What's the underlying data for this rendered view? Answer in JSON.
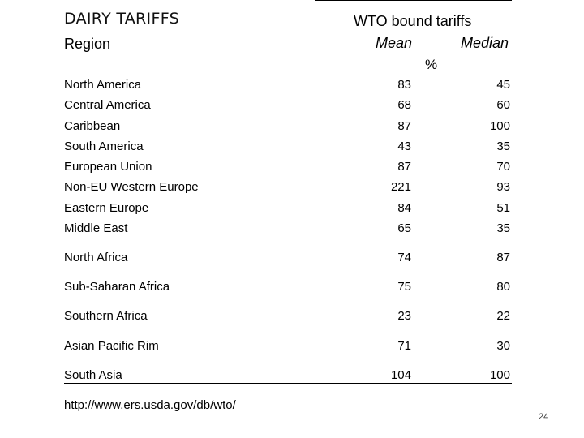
{
  "slide": {
    "title": "DAIRY TARIFFS",
    "source": "http://www.ers.usda.gov/db/wto/",
    "page_number": "24"
  },
  "table": {
    "group_header": "WTO bound tariffs",
    "region_header": "Region",
    "mean_header": "Mean",
    "median_header": "Median",
    "unit": "%",
    "rows": [
      {
        "region": "North America",
        "mean": "83",
        "median": "45"
      },
      {
        "region": "Central America",
        "mean": "68",
        "median": "60"
      },
      {
        "region": "Caribbean",
        "mean": "87",
        "median": "100"
      },
      {
        "region": "South America",
        "mean": "43",
        "median": "35"
      },
      {
        "region": "European Union",
        "mean": "87",
        "median": "70"
      },
      {
        "region": "Non-EU Western Europe",
        "mean": "221",
        "median": "93"
      },
      {
        "region": "Eastern Europe",
        "mean": "84",
        "median": "51"
      },
      {
        "region": "Middle East",
        "mean": "65",
        "median": "35"
      },
      {
        "region": "North Africa",
        "mean": "74",
        "median": "87"
      },
      {
        "region": "Sub-Saharan Africa",
        "mean": "75",
        "median": "80"
      },
      {
        "region": "Southern Africa",
        "mean": "23",
        "median": "22"
      },
      {
        "region": "Asian Pacific Rim",
        "mean": "71",
        "median": "30"
      },
      {
        "region": "South Asia",
        "mean": "104",
        "median": "100"
      }
    ]
  }
}
